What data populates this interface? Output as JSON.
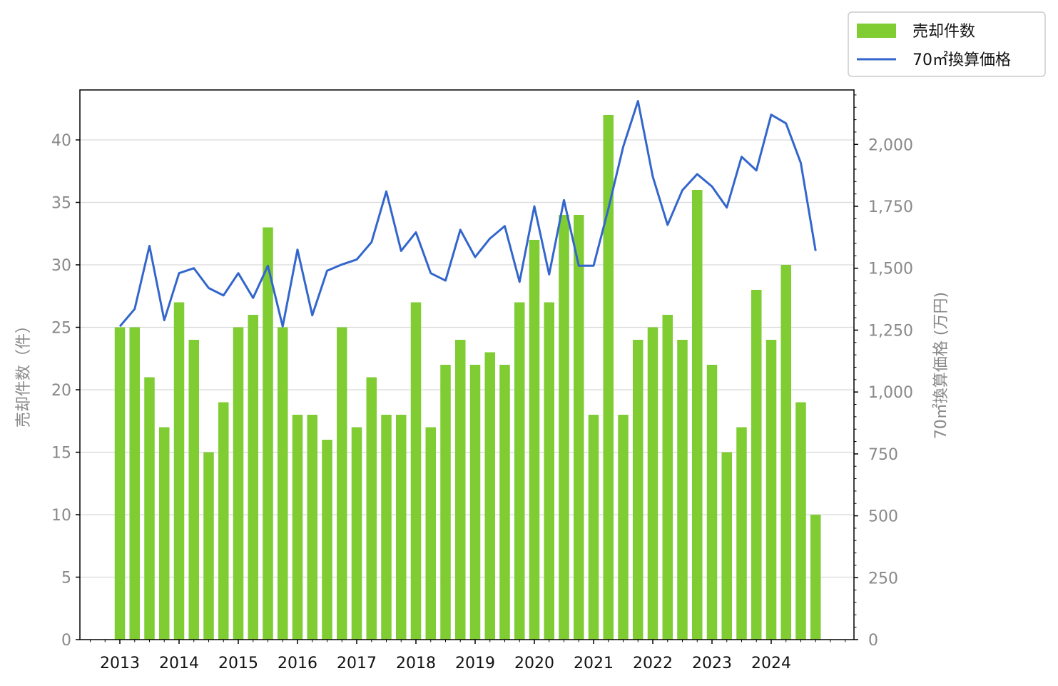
{
  "chart_data": {
    "type": "bar",
    "title": "",
    "x_tick_labels": [
      "2013",
      "2014",
      "2015",
      "2016",
      "2017",
      "2018",
      "2019",
      "2020",
      "2021",
      "2022",
      "2023",
      "2024"
    ],
    "periods_per_year": 4,
    "start_year": 2013,
    "colors": {
      "bar": "#7fcc33",
      "line": "#3366cc",
      "grid": "#d9d9d9",
      "axis": "#000000",
      "tick_text": "#888888"
    },
    "left_axis": {
      "label": "売却件数（件）",
      "ylim": [
        0,
        44
      ],
      "ticks": [
        0,
        5,
        10,
        15,
        20,
        25,
        30,
        35,
        40
      ]
    },
    "right_axis": {
      "label": "70㎡換算価格 (万円)",
      "ylim": [
        0,
        2220
      ],
      "ticks": [
        0,
        250,
        500,
        750,
        1000,
        1250,
        1500,
        1750,
        2000
      ],
      "tick_labels": [
        "0",
        "250",
        "500",
        "750",
        "1,000",
        "1,250",
        "1,500",
        "1,750",
        "2,000"
      ]
    },
    "legend": {
      "position": "top-right",
      "entries": [
        "売却件数",
        "70㎡換算価格"
      ]
    },
    "grid": "horizontal",
    "series": [
      {
        "name": "売却件数",
        "type": "bar",
        "axis": "left",
        "values": [
          25,
          25,
          21,
          17,
          27,
          24,
          15,
          19,
          25,
          26,
          33,
          25,
          18,
          18,
          16,
          25,
          17,
          21,
          18,
          18,
          27,
          17,
          22,
          24,
          22,
          23,
          22,
          27,
          32,
          27,
          34,
          34,
          18,
          42,
          18,
          24,
          25,
          26,
          24,
          36,
          22,
          15,
          17,
          28,
          24,
          30,
          19,
          10
        ]
      },
      {
        "name": "70㎡換算価格",
        "type": "line",
        "axis": "right",
        "values": [
          1265,
          1335,
          1590,
          1290,
          1480,
          1500,
          1420,
          1390,
          1480,
          1380,
          1510,
          1265,
          1575,
          1310,
          1490,
          1515,
          1535,
          1605,
          1810,
          1570,
          1645,
          1480,
          1450,
          1655,
          1545,
          1620,
          1670,
          1445,
          1750,
          1475,
          1775,
          1510,
          1510,
          1740,
          1990,
          2175,
          1870,
          1675,
          1815,
          1880,
          1830,
          1745,
          1950,
          1895,
          2120,
          2085,
          1925,
          1570
        ]
      }
    ]
  }
}
